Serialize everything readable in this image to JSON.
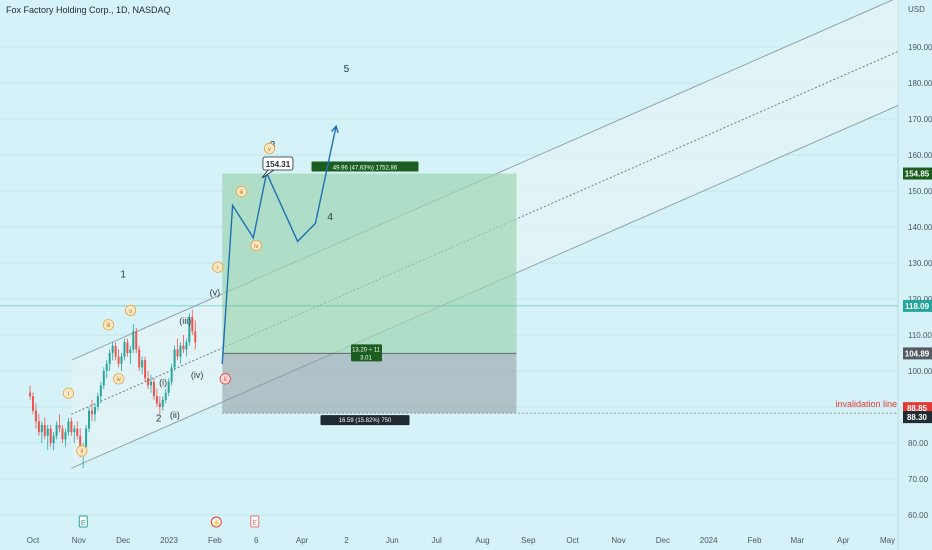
{
  "header": {
    "title": "Fox Factory Holding Corp., 1D, NASDAQ",
    "currency": "USD"
  },
  "colors": {
    "background": "#d4f2f7",
    "candle_up": "#26a69a",
    "candle_down": "#ef5350",
    "wave_path": "#1f6fb2",
    "target_zone": "#9fd6b4",
    "stop_zone": "#8e9aa0",
    "wave_label_circle": "#e8a33a",
    "invalidation": "#e53935"
  },
  "chart_data": {
    "type": "candlestick",
    "ylim": [
      57,
      205
    ],
    "x_ticks": [
      "Oct",
      "Nov",
      "Dec",
      "2023",
      "Feb",
      "6",
      "Apr",
      "2",
      "Jun",
      "Jul",
      "Aug",
      "Sep",
      "Oct",
      "Nov",
      "Dec",
      "2024",
      "Feb",
      "Mar",
      "Apr",
      "May"
    ],
    "y_ticks": [
      60,
      70,
      80,
      90,
      100,
      110,
      120,
      130,
      140,
      150,
      160,
      170,
      180,
      190
    ],
    "price_badges": [
      {
        "value": "154.85",
        "bg": "#1b5e20"
      },
      {
        "value": "118.09",
        "bg": "#26a69a"
      },
      {
        "value": "104.89",
        "bg": "#545b62"
      },
      {
        "value": "88.85",
        "bg": "#e53935"
      },
      {
        "value": "88.30",
        "bg": "#1f2a33"
      }
    ],
    "candles": [
      [
        94,
        96,
        92,
        93
      ],
      [
        93,
        94,
        88,
        89
      ],
      [
        89,
        91,
        84,
        86
      ],
      [
        86,
        88,
        82,
        83
      ],
      [
        83,
        86,
        80,
        85
      ],
      [
        85,
        87,
        81,
        82
      ],
      [
        82,
        85,
        78,
        84
      ],
      [
        84,
        85,
        79,
        80
      ],
      [
        80,
        83,
        78,
        82
      ],
      [
        82,
        86,
        81,
        85
      ],
      [
        85,
        88,
        83,
        84
      ],
      [
        84,
        85,
        80,
        81
      ],
      [
        81,
        84,
        79,
        83
      ],
      [
        83,
        87,
        82,
        86
      ],
      [
        86,
        87,
        82,
        83
      ],
      [
        83,
        85,
        80,
        84
      ],
      [
        84,
        86,
        81,
        82
      ],
      [
        82,
        84,
        76,
        77
      ],
      [
        77,
        80,
        73,
        79
      ],
      [
        79,
        85,
        78,
        84
      ],
      [
        84,
        90,
        83,
        89
      ],
      [
        89,
        92,
        86,
        88
      ],
      [
        88,
        91,
        86,
        90
      ],
      [
        90,
        94,
        89,
        93
      ],
      [
        93,
        97,
        91,
        96
      ],
      [
        96,
        101,
        95,
        100
      ],
      [
        100,
        103,
        98,
        102
      ],
      [
        102,
        106,
        100,
        105
      ],
      [
        105,
        108,
        103,
        107
      ],
      [
        107,
        108,
        103,
        104
      ],
      [
        104,
        106,
        101,
        102
      ],
      [
        102,
        105,
        100,
        104
      ],
      [
        104,
        109,
        103,
        108
      ],
      [
        108,
        109,
        104,
        105
      ],
      [
        105,
        107,
        102,
        106
      ],
      [
        106,
        113,
        105,
        111
      ],
      [
        111,
        112,
        105,
        106
      ],
      [
        106,
        107,
        100,
        101
      ],
      [
        101,
        104,
        99,
        103
      ],
      [
        103,
        104,
        97,
        98
      ],
      [
        98,
        100,
        95,
        96
      ],
      [
        96,
        99,
        94,
        97
      ],
      [
        97,
        98,
        92,
        93
      ],
      [
        93,
        95,
        90,
        91
      ],
      [
        91,
        93,
        88,
        90
      ],
      [
        90,
        93,
        89,
        92
      ],
      [
        92,
        95,
        91,
        94
      ],
      [
        94,
        98,
        93,
        97
      ],
      [
        97,
        102,
        96,
        101
      ],
      [
        101,
        107,
        100,
        106
      ],
      [
        106,
        109,
        103,
        104
      ],
      [
        104,
        108,
        102,
        107
      ],
      [
        107,
        110,
        105,
        106
      ],
      [
        106,
        109,
        104,
        108
      ],
      [
        108,
        116,
        107,
        115
      ],
      [
        115,
        117,
        110,
        111
      ],
      [
        111,
        114,
        106,
        108
      ]
    ],
    "channel": [
      {
        "role": "upper",
        "from": [
          "2022-10-27",
          103
        ],
        "to": [
          "2024-05-15",
          205
        ]
      },
      {
        "role": "middle",
        "from": [
          "2022-10-27",
          88
        ],
        "to": [
          "2024-05-15",
          205
        ]
      },
      {
        "role": "lower",
        "from": [
          "2022-10-27",
          73
        ],
        "to": [
          "2024-05-15",
          205
        ]
      }
    ],
    "wave_path_points": [
      [
        "2023-02-06",
        102
      ],
      [
        "2023-02-13",
        146
      ],
      [
        "2023-02-27",
        137
      ],
      [
        "2023-03-08",
        155
      ],
      [
        "2023-03-29",
        136
      ],
      [
        "2023-04-10",
        141
      ],
      [
        "2023-04-24",
        168
      ]
    ],
    "target_zone": {
      "price_top": 154.85,
      "price_bottom": 104.89,
      "label": "49.96 (47.63%) 1752.86"
    },
    "stop_zone": {
      "price_top": 104.89,
      "price_bottom": 88.3,
      "label": "16.59 (15.82%) 750"
    },
    "risk_reward": {
      "line1": "13.20 ÷ 11",
      "line2": "3.01"
    },
    "entry_price": 118.09,
    "invalidation": {
      "label": "invalidation line",
      "price": 88.3
    },
    "callout": "154.31",
    "wave_labels": [
      {
        "text": "1",
        "date": "2022-12-01",
        "price": 126,
        "style": "plain"
      },
      {
        "text": "2",
        "date": "2022-12-25",
        "price": 86,
        "style": "plain"
      },
      {
        "text": "3",
        "date": "2023-03-12",
        "price": 162,
        "style": "plain"
      },
      {
        "text": "4",
        "date": "2023-04-20",
        "price": 142,
        "style": "plain"
      },
      {
        "text": "5",
        "date": "2023-05-01",
        "price": 183,
        "style": "plain"
      },
      {
        "text": "(i)",
        "date": "2022-12-28",
        "price": 96,
        "style": "paren"
      },
      {
        "text": "(ii)",
        "date": "2023-01-05",
        "price": 87,
        "style": "paren"
      },
      {
        "text": "(iii)",
        "date": "2023-01-12",
        "price": 113,
        "style": "paren"
      },
      {
        "text": "(iv)",
        "date": "2023-01-20",
        "price": 98,
        "style": "paren"
      },
      {
        "text": "(v)",
        "date": "2023-02-01",
        "price": 121,
        "style": "paren"
      },
      {
        "text": "i",
        "date": "2022-10-25",
        "price": 93,
        "style": "circle"
      },
      {
        "text": "ii",
        "date": "2022-11-03",
        "price": 77,
        "style": "circle"
      },
      {
        "text": "iii",
        "date": "2022-11-21",
        "price": 112,
        "style": "circle"
      },
      {
        "text": "iv",
        "date": "2022-11-28",
        "price": 97,
        "style": "circle"
      },
      {
        "text": "v",
        "date": "2022-12-06",
        "price": 116,
        "style": "circle"
      },
      {
        "text": "i",
        "date": "2023-02-03",
        "price": 128,
        "style": "circle"
      },
      {
        "text": "ii",
        "date": "2023-02-08",
        "price": 97,
        "style": "circle-red"
      },
      {
        "text": "iii",
        "date": "2023-02-19",
        "price": 149,
        "style": "circle"
      },
      {
        "text": "iv",
        "date": "2023-03-01",
        "price": 134,
        "style": "circle"
      },
      {
        "text": "v",
        "date": "2023-03-10",
        "price": 161,
        "style": "circle"
      }
    ],
    "event_markers": [
      {
        "text": "E",
        "type": "earnings",
        "color": "#26a69a"
      },
      {
        "text": "⚡",
        "type": "dividend",
        "color": "#e53935"
      },
      {
        "text": "E",
        "type": "earnings",
        "color": "#e57373"
      }
    ]
  }
}
